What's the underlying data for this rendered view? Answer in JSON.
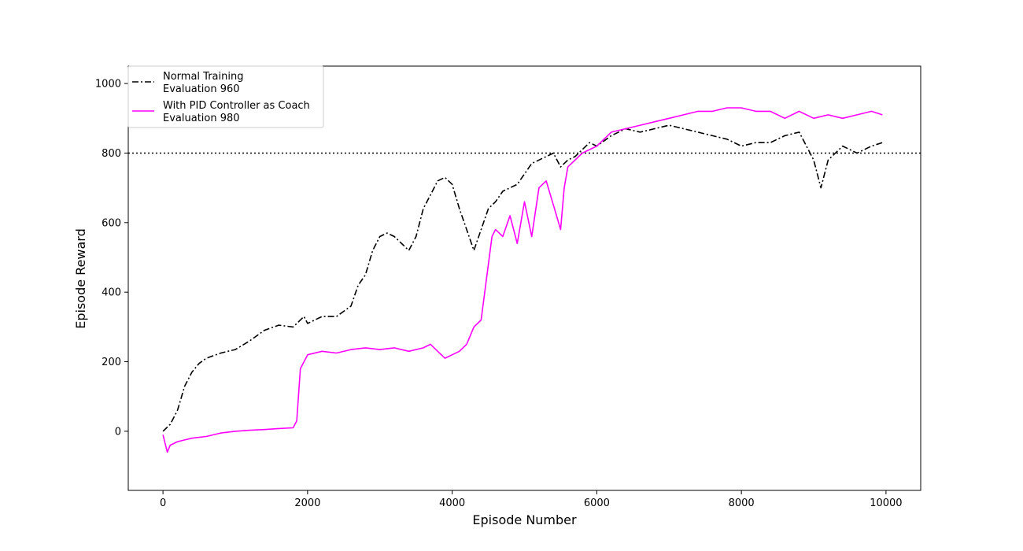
{
  "chart_data": {
    "type": "line",
    "title": "",
    "xlabel": "Episode Number",
    "ylabel": "Episode Reward",
    "xlim": [
      -480,
      10480
    ],
    "ylim": [
      -170,
      1050
    ],
    "xticks": [
      0,
      2000,
      4000,
      6000,
      8000,
      10000
    ],
    "yticks": [
      0,
      200,
      400,
      600,
      800,
      1000
    ],
    "grid": false,
    "legend_position": "top-left",
    "reference_line": {
      "y": 800,
      "style": "dotted",
      "color": "#000000"
    },
    "series": [
      {
        "name": "Normal Training",
        "legend_subtitle": "Evaluation 960",
        "color": "#000000",
        "style": "dashdot",
        "x": [
          0,
          100,
          200,
          300,
          400,
          500,
          600,
          800,
          1000,
          1200,
          1400,
          1600,
          1800,
          1950,
          2000,
          2200,
          2400,
          2600,
          2700,
          2800,
          2900,
          3000,
          3100,
          3200,
          3300,
          3400,
          3500,
          3600,
          3700,
          3800,
          3900,
          4000,
          4100,
          4200,
          4300,
          4400,
          4500,
          4600,
          4700,
          4800,
          4900,
          5000,
          5100,
          5200,
          5300,
          5400,
          5500,
          5600,
          5700,
          5800,
          5900,
          6000,
          6200,
          6400,
          6600,
          6800,
          7000,
          7200,
          7400,
          7600,
          7800,
          8000,
          8200,
          8400,
          8600,
          8800,
          9000,
          9100,
          9200,
          9400,
          9600,
          9800,
          9950
        ],
        "y": [
          0,
          20,
          60,
          130,
          170,
          195,
          210,
          225,
          235,
          260,
          290,
          305,
          300,
          330,
          310,
          330,
          330,
          360,
          420,
          450,
          520,
          560,
          570,
          560,
          540,
          520,
          560,
          640,
          680,
          720,
          730,
          710,
          640,
          580,
          520,
          580,
          640,
          660,
          690,
          700,
          710,
          740,
          770,
          780,
          790,
          800,
          760,
          780,
          790,
          810,
          830,
          820,
          850,
          870,
          860,
          870,
          880,
          870,
          860,
          850,
          840,
          820,
          830,
          830,
          850,
          860,
          780,
          700,
          780,
          820,
          800,
          820,
          830
        ]
      },
      {
        "name": "With PID Controller as Coach",
        "legend_subtitle": "Evaluation 980",
        "color": "#ff00ff",
        "style": "solid",
        "x": [
          0,
          60,
          100,
          200,
          300,
          400,
          600,
          800,
          1000,
          1200,
          1400,
          1600,
          1800,
          1850,
          1900,
          2000,
          2200,
          2400,
          2600,
          2800,
          3000,
          3200,
          3400,
          3600,
          3700,
          3800,
          3900,
          4000,
          4100,
          4200,
          4300,
          4400,
          4450,
          4500,
          4550,
          4600,
          4700,
          4800,
          4900,
          5000,
          5100,
          5200,
          5300,
          5400,
          5500,
          5550,
          5600,
          5700,
          5800,
          6000,
          6200,
          6400,
          6600,
          6800,
          7000,
          7200,
          7400,
          7600,
          7800,
          8000,
          8200,
          8400,
          8600,
          8800,
          9000,
          9200,
          9400,
          9600,
          9800,
          9950
        ],
        "y": [
          -10,
          -60,
          -40,
          -30,
          -25,
          -20,
          -15,
          -5,
          0,
          3,
          5,
          8,
          10,
          30,
          180,
          220,
          230,
          225,
          235,
          240,
          235,
          240,
          230,
          240,
          250,
          230,
          210,
          220,
          230,
          250,
          300,
          320,
          400,
          480,
          560,
          580,
          560,
          620,
          540,
          660,
          560,
          700,
          720,
          650,
          580,
          700,
          760,
          780,
          800,
          820,
          860,
          870,
          880,
          890,
          900,
          910,
          920,
          920,
          930,
          930,
          920,
          920,
          900,
          920,
          900,
          910,
          900,
          910,
          920,
          910
        ]
      }
    ]
  }
}
